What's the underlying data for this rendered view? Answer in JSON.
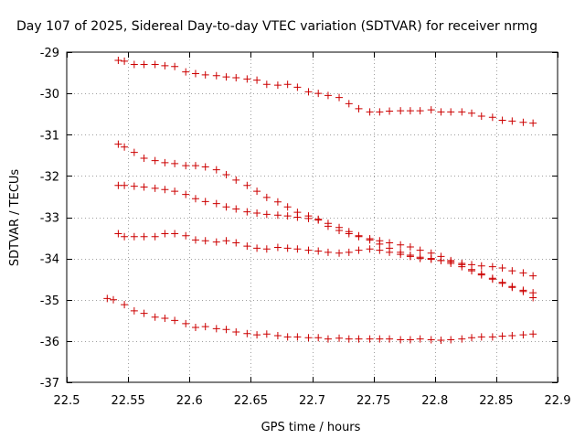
{
  "chart_data": {
    "type": "scatter",
    "title": "Day 107 of 2025, Sidereal Day-to-day VTEC variation (SDTVAR) for receiver nrmg",
    "xlabel": "GPS time / hours",
    "ylabel": "SDTVAR / TECUs",
    "xlim": [
      22.5,
      22.9
    ],
    "ylim": [
      -37,
      -29
    ],
    "xticks": [
      22.5,
      22.55,
      22.6,
      22.65,
      22.7,
      22.75,
      22.8,
      22.85,
      22.9
    ],
    "xtick_labels": [
      "22.5",
      "22.55",
      "22.6",
      "22.65",
      "22.7",
      "22.75",
      "22.8",
      "22.85",
      "22.9"
    ],
    "yticks": [
      -29,
      -30,
      -31,
      -32,
      -33,
      -34,
      -35,
      -36,
      -37
    ],
    "ytick_labels": [
      "-29",
      "-30",
      "-31",
      "-32",
      "-33",
      "-34",
      "-35",
      "-36",
      "-37"
    ],
    "grid": true,
    "marker": "plus",
    "color": "#cc0000",
    "series": [
      {
        "name": "track-1",
        "x": [
          22.542,
          22.547,
          22.555,
          22.563,
          22.572,
          22.58,
          22.588,
          22.597,
          22.605,
          22.613,
          22.622,
          22.63,
          22.638,
          22.647,
          22.655,
          22.663,
          22.672,
          22.68,
          22.688,
          22.697,
          22.705,
          22.713,
          22.722,
          22.73,
          22.738,
          22.747,
          22.755,
          22.763,
          22.772,
          22.78,
          22.788,
          22.797,
          22.805,
          22.813,
          22.822,
          22.83,
          22.838,
          22.847,
          22.855,
          22.863,
          22.872,
          22.88
        ],
        "y": [
          -29.2,
          -29.22,
          -29.3,
          -29.3,
          -29.3,
          -29.33,
          -29.35,
          -29.48,
          -29.52,
          -29.55,
          -29.57,
          -29.6,
          -29.62,
          -29.65,
          -29.68,
          -29.78,
          -29.8,
          -29.78,
          -29.85,
          -29.96,
          -30.0,
          -30.05,
          -30.1,
          -30.25,
          -30.37,
          -30.45,
          -30.45,
          -30.43,
          -30.42,
          -30.42,
          -30.42,
          -30.4,
          -30.45,
          -30.45,
          -30.45,
          -30.48,
          -30.55,
          -30.58,
          -30.65,
          -30.67,
          -30.7,
          -30.72
        ]
      },
      {
        "name": "track-2",
        "x": [
          22.542,
          22.547,
          22.555,
          22.563,
          22.572,
          22.58,
          22.588,
          22.597,
          22.605,
          22.613,
          22.622,
          22.63,
          22.638,
          22.647,
          22.655,
          22.663,
          22.672,
          22.68,
          22.688,
          22.697,
          22.705,
          22.713,
          22.722,
          22.73,
          22.738,
          22.747,
          22.755,
          22.763,
          22.772,
          22.78,
          22.788,
          22.797,
          22.805,
          22.813,
          22.822,
          22.83,
          22.838,
          22.847,
          22.855,
          22.863,
          22.872,
          22.88
        ],
        "y": [
          -31.23,
          -31.3,
          -31.43,
          -31.57,
          -31.63,
          -31.68,
          -31.7,
          -31.75,
          -31.75,
          -31.78,
          -31.85,
          -31.97,
          -32.1,
          -32.23,
          -32.37,
          -32.52,
          -32.63,
          -32.75,
          -32.88,
          -32.97,
          -33.05,
          -33.22,
          -33.32,
          -33.4,
          -33.47,
          -33.52,
          -33.57,
          -33.62,
          -33.67,
          -33.72,
          -33.8,
          -33.87,
          -33.95,
          -34.05,
          -34.15,
          -34.27,
          -34.37,
          -34.48,
          -34.58,
          -34.68,
          -34.77,
          -34.83
        ]
      },
      {
        "name": "track-3",
        "x": [
          22.542,
          22.547,
          22.555,
          22.563,
          22.572,
          22.58,
          22.588,
          22.597,
          22.605,
          22.613,
          22.622,
          22.63,
          22.638,
          22.647,
          22.655,
          22.663,
          22.672,
          22.68,
          22.688,
          22.697,
          22.705,
          22.713,
          22.722,
          22.73,
          22.738,
          22.747,
          22.755,
          22.763,
          22.772,
          22.78,
          22.788,
          22.797,
          22.805,
          22.813,
          22.822,
          22.83,
          22.838,
          22.847,
          22.855,
          22.863,
          22.872,
          22.88
        ],
        "y": [
          -32.23,
          -32.23,
          -32.25,
          -32.27,
          -32.3,
          -32.33,
          -32.37,
          -32.45,
          -32.55,
          -32.62,
          -32.67,
          -32.75,
          -32.8,
          -32.87,
          -32.9,
          -32.93,
          -32.95,
          -32.97,
          -33.0,
          -33.03,
          -33.07,
          -33.15,
          -33.25,
          -33.35,
          -33.45,
          -33.55,
          -33.65,
          -33.75,
          -33.85,
          -33.92,
          -33.97,
          -34.0,
          -34.05,
          -34.12,
          -34.2,
          -34.3,
          -34.4,
          -34.5,
          -34.6,
          -34.7,
          -34.8,
          -34.95
        ]
      },
      {
        "name": "track-4",
        "x": [
          22.542,
          22.547,
          22.555,
          22.563,
          22.572,
          22.58,
          22.588,
          22.597,
          22.605,
          22.613,
          22.622,
          22.63,
          22.638,
          22.647,
          22.655,
          22.663,
          22.672,
          22.68,
          22.688,
          22.697,
          22.705,
          22.713,
          22.722,
          22.73,
          22.738,
          22.747,
          22.755,
          22.763,
          22.772,
          22.78,
          22.788,
          22.797,
          22.805,
          22.813,
          22.822,
          22.83,
          22.838,
          22.847,
          22.855,
          22.863,
          22.872,
          22.88
        ],
        "y": [
          -33.4,
          -33.47,
          -33.47,
          -33.47,
          -33.47,
          -33.4,
          -33.4,
          -33.45,
          -33.55,
          -33.57,
          -33.6,
          -33.57,
          -33.62,
          -33.7,
          -33.75,
          -33.77,
          -33.73,
          -33.75,
          -33.77,
          -33.8,
          -33.82,
          -33.85,
          -33.87,
          -33.85,
          -33.8,
          -33.77,
          -33.8,
          -33.85,
          -33.9,
          -33.95,
          -34.0,
          -34.02,
          -34.05,
          -34.08,
          -34.12,
          -34.15,
          -34.18,
          -34.2,
          -34.23,
          -34.3,
          -34.35,
          -34.42
        ]
      },
      {
        "name": "track-5",
        "x": [
          22.533,
          22.538,
          22.547,
          22.555,
          22.563,
          22.572,
          22.58,
          22.588,
          22.597,
          22.605,
          22.613,
          22.622,
          22.63,
          22.638,
          22.647,
          22.655,
          22.663,
          22.672,
          22.68,
          22.688,
          22.697,
          22.705,
          22.713,
          22.722,
          22.73,
          22.738,
          22.747,
          22.755,
          22.763,
          22.772,
          22.78,
          22.788,
          22.797,
          22.805,
          22.813,
          22.822,
          22.83,
          22.838,
          22.847,
          22.855,
          22.863,
          22.872,
          22.88
        ],
        "y": [
          -34.97,
          -35.0,
          -35.12,
          -35.27,
          -35.33,
          -35.42,
          -35.45,
          -35.5,
          -35.58,
          -35.67,
          -35.65,
          -35.7,
          -35.72,
          -35.78,
          -35.82,
          -35.85,
          -35.83,
          -35.87,
          -35.9,
          -35.9,
          -35.92,
          -35.92,
          -35.95,
          -35.93,
          -35.95,
          -35.95,
          -35.95,
          -35.95,
          -35.95,
          -35.97,
          -35.97,
          -35.95,
          -35.97,
          -35.98,
          -35.97,
          -35.95,
          -35.92,
          -35.9,
          -35.9,
          -35.88,
          -35.87,
          -35.85,
          -35.83
        ]
      }
    ]
  }
}
